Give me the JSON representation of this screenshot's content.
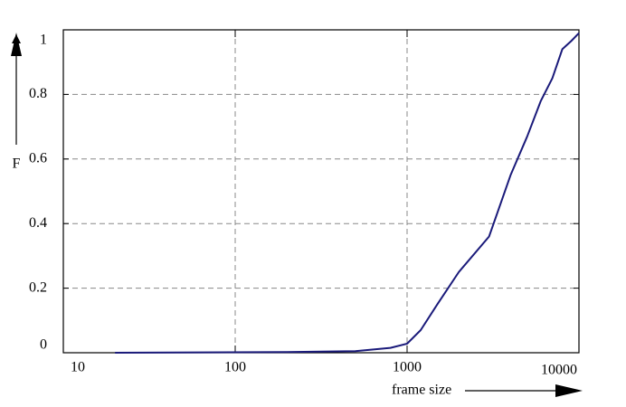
{
  "chart_data": {
    "type": "line",
    "x_label": "frame size",
    "y_label": "F",
    "x": [
      20,
      200,
      500,
      800,
      1000,
      1200,
      1500,
      2000,
      3000,
      4000,
      5000,
      6000,
      7000,
      8000,
      9000,
      10000
    ],
    "series": [
      {
        "color": "#1a1a7a",
        "values": [
          0,
          0.002,
          0.005,
          0.015,
          0.028,
          0.07,
          0.15,
          0.25,
          0.36,
          0.55,
          0.67,
          0.78,
          0.85,
          0.94,
          0.965,
          0.99
        ]
      }
    ],
    "xlim": [
      10,
      10000
    ],
    "ylim": [
      0,
      1
    ],
    "xscale": "log",
    "xticks": [
      10,
      100,
      1000,
      10000
    ],
    "yticks": [
      0,
      0.2,
      0.4,
      0.6,
      0.8,
      1
    ],
    "grid": true
  }
}
